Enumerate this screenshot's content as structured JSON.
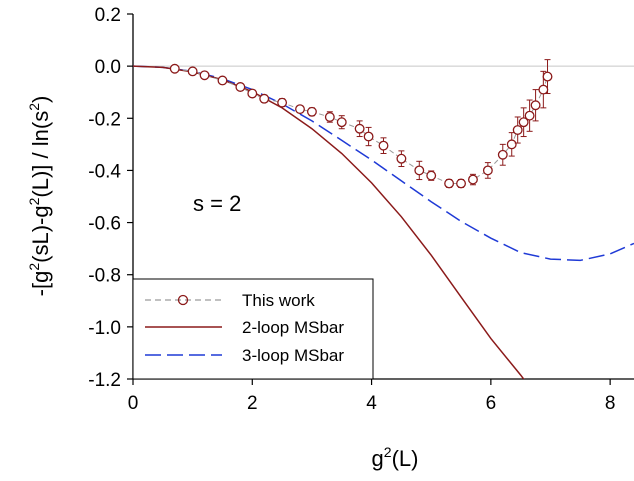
{
  "chart_data": {
    "type": "line",
    "xlabel_base": "g",
    "xlabel_sup": "2",
    "xlabel_rest": "(L)",
    "ylabel_parts": [
      {
        "t": "-[g"
      },
      {
        "t": "2",
        "sup": true
      },
      {
        "t": "(sL)-g"
      },
      {
        "t": "2",
        "sup": true
      },
      {
        "t": "(L)] / ln(s"
      },
      {
        "t": "2",
        "sup": true
      },
      {
        "t": ")"
      }
    ],
    "xlim": [
      0,
      8.4
    ],
    "ylim": [
      -1.2,
      0.2
    ],
    "x_ticks": [
      0,
      2,
      4,
      6,
      8
    ],
    "x_tick_labels": [
      "0",
      "2",
      "4",
      "6",
      "8"
    ],
    "y_ticks": [
      0.2,
      0.0,
      -0.2,
      -0.4,
      -0.6,
      -0.8,
      -1.0,
      -1.2
    ],
    "y_tick_labels": [
      "0.2",
      "0.0",
      "-0.2",
      "-0.4",
      "-0.6",
      "-0.8",
      "-1.0",
      "-1.2"
    ],
    "annotation": "s = 2",
    "legend_position": "bottom-left",
    "series": [
      {
        "name": "This work",
        "style": "markers-dashed",
        "color": "#8b1a1a",
        "line_color": "#9a9a9a",
        "x": [
          0.7,
          1.0,
          1.2,
          1.5,
          1.8,
          2.0,
          2.2,
          2.5,
          2.8,
          3.0,
          3.3,
          3.5,
          3.8,
          3.95,
          4.2,
          4.5,
          4.8,
          5.0,
          5.3,
          5.5,
          5.7,
          5.95,
          6.2,
          6.35,
          6.45,
          6.55,
          6.65,
          6.75,
          6.88,
          6.95
        ],
        "y": [
          -0.01,
          -0.02,
          -0.035,
          -0.055,
          -0.08,
          -0.105,
          -0.125,
          -0.14,
          -0.165,
          -0.175,
          -0.195,
          -0.215,
          -0.24,
          -0.27,
          -0.305,
          -0.355,
          -0.4,
          -0.42,
          -0.45,
          -0.45,
          -0.435,
          -0.4,
          -0.34,
          -0.3,
          -0.245,
          -0.215,
          -0.19,
          -0.15,
          -0.09,
          -0.04
        ],
        "err": [
          0.008,
          0.01,
          0.01,
          0.012,
          0.012,
          0.013,
          0.014,
          0.015,
          0.012,
          0.015,
          0.02,
          0.025,
          0.03,
          0.035,
          0.03,
          0.03,
          0.035,
          0.018,
          0.015,
          0.015,
          0.02,
          0.03,
          0.04,
          0.045,
          0.05,
          0.055,
          0.06,
          0.06,
          0.07,
          0.065
        ]
      },
      {
        "name": "2-loop MSbar",
        "style": "solid",
        "color": "#8b1a1a",
        "x": [
          0,
          0.5,
          1.0,
          1.5,
          2.0,
          2.5,
          3.0,
          3.5,
          4.0,
          4.5,
          5.0,
          5.5,
          6.0,
          6.5,
          6.6
        ],
        "y": [
          0,
          -0.005,
          -0.022,
          -0.052,
          -0.098,
          -0.16,
          -0.24,
          -0.335,
          -0.448,
          -0.578,
          -0.725,
          -0.885,
          -1.045,
          -1.185,
          -1.215
        ]
      },
      {
        "name": "3-loop MSbar",
        "style": "dashed",
        "color": "#1f3ad6",
        "x": [
          0,
          0.5,
          1.0,
          1.5,
          2.0,
          2.5,
          3.0,
          3.5,
          4.0,
          4.5,
          5.0,
          5.5,
          6.0,
          6.5,
          7.0,
          7.5,
          8.0,
          8.4
        ],
        "y": [
          0,
          -0.005,
          -0.02,
          -0.048,
          -0.09,
          -0.145,
          -0.21,
          -0.285,
          -0.36,
          -0.44,
          -0.52,
          -0.595,
          -0.66,
          -0.715,
          -0.74,
          -0.745,
          -0.72,
          -0.68
        ]
      }
    ]
  }
}
